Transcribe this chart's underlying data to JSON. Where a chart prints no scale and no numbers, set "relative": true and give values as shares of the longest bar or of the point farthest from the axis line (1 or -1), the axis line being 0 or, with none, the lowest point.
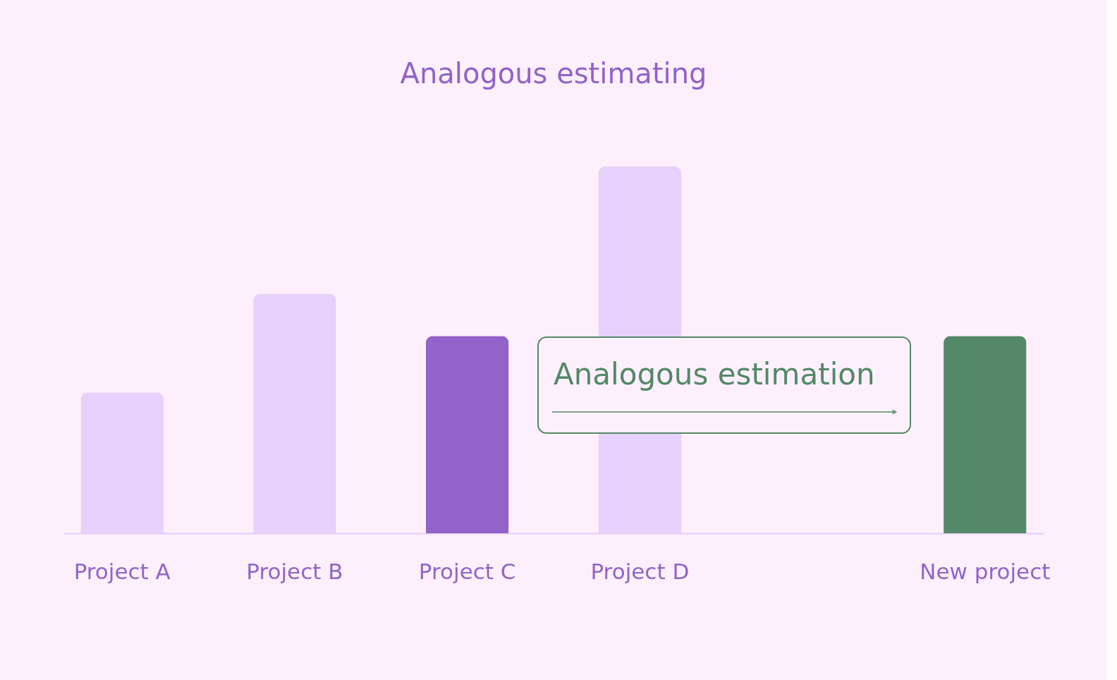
{
  "chart_data": {
    "type": "bar",
    "title": "Analogous estimating",
    "relative": true,
    "categories": [
      "Project A",
      "Project B",
      "Project C",
      "Project D",
      null,
      "New project"
    ],
    "values": [
      0.384,
      0.653,
      0.538,
      1,
      null,
      0.538
    ],
    "colors": [
      "#e6d0fc",
      "#e6d0fc",
      "#9263c8",
      "#e6d0fc",
      "#e6d0fc",
      "#548868"
    ],
    "annotations": [
      "Analogous estimation"
    ],
    "grid": false
  }
}
